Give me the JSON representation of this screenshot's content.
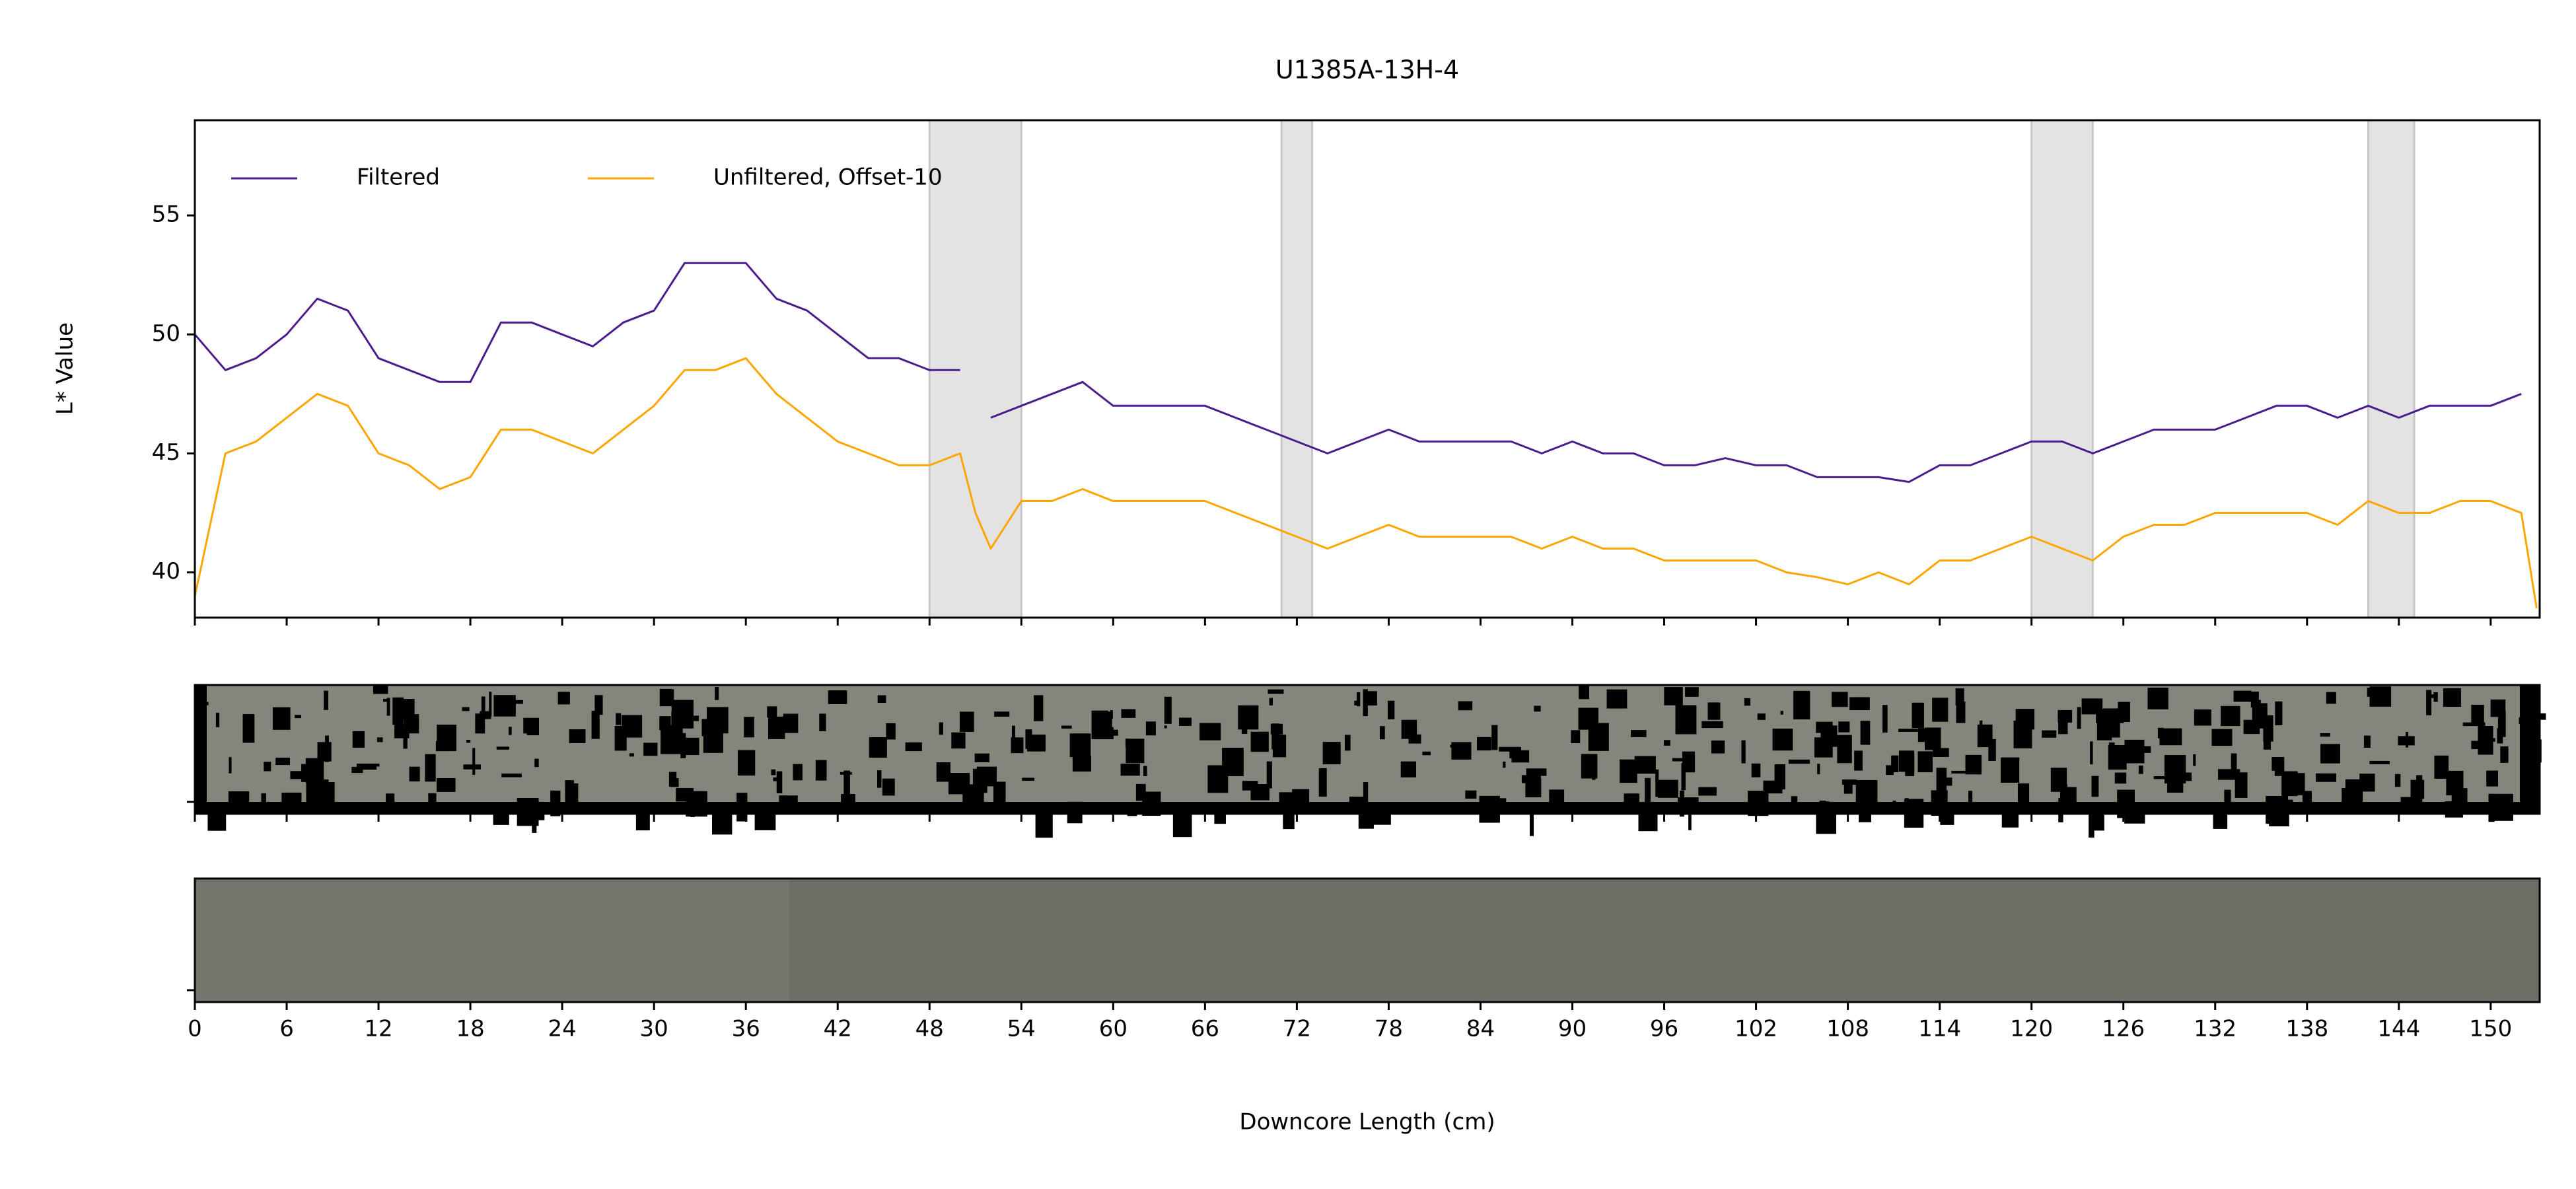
{
  "chart_data": {
    "type": "line",
    "title": "U1385A-13H-4",
    "xlabel": "Downcore Length (cm)",
    "ylabel": "L* Value",
    "x": [
      0,
      2,
      4,
      6,
      8,
      10,
      12,
      14,
      16,
      18,
      20,
      22,
      24,
      26,
      28,
      30,
      32,
      34,
      36,
      38,
      40,
      42,
      44,
      46,
      48,
      50,
      51,
      52,
      54,
      56,
      58,
      60,
      62,
      64,
      66,
      68,
      70,
      72,
      74,
      76,
      78,
      80,
      82,
      84,
      86,
      88,
      90,
      92,
      94,
      96,
      98,
      100,
      102,
      104,
      106,
      108,
      110,
      112,
      114,
      116,
      118,
      120,
      122,
      124,
      126,
      128,
      130,
      132,
      134,
      136,
      138,
      140,
      142,
      144,
      146,
      148,
      150,
      152,
      153
    ],
    "series": [
      {
        "name": "Filtered",
        "color": "#4b1d8c",
        "values": [
          50,
          48.5,
          49,
          50,
          51.5,
          51,
          49,
          48.5,
          48,
          48,
          50.5,
          50.5,
          50,
          49.5,
          50.5,
          51,
          53,
          53,
          53,
          51.5,
          51,
          50,
          49,
          49,
          48.5,
          48.5,
          null,
          46.5,
          47,
          47.5,
          48,
          47,
          47,
          47,
          47,
          46.5,
          46,
          45.5,
          45,
          45.5,
          46,
          45.5,
          45.5,
          45.5,
          45.5,
          45,
          45.5,
          45,
          45,
          44.5,
          44.5,
          44.8,
          44.5,
          44.5,
          44,
          44,
          44,
          43.8,
          44.5,
          44.5,
          45,
          45.5,
          45.5,
          45,
          45.5,
          46,
          46,
          46,
          46.5,
          47,
          47,
          46.5,
          47,
          46.5,
          47,
          47,
          47,
          47.5,
          null
        ]
      },
      {
        "name": "Unfiltered, Offset-10",
        "color": "#ffa500",
        "values": [
          39,
          45,
          45.5,
          46.5,
          47.5,
          47,
          45,
          44.5,
          43.5,
          44,
          46,
          46,
          45.5,
          45,
          46,
          47,
          48.5,
          48.5,
          49,
          47.5,
          46.5,
          45.5,
          45,
          44.5,
          44.5,
          45,
          42.5,
          41,
          43,
          43,
          43.5,
          43,
          43,
          43,
          43,
          42.5,
          42,
          41.5,
          41,
          41.5,
          42,
          41.5,
          41.5,
          41.5,
          41.5,
          41,
          41.5,
          41,
          41,
          40.5,
          40.5,
          40.5,
          40.5,
          40,
          39.8,
          39.5,
          40,
          39.5,
          40.5,
          40.5,
          41,
          41.5,
          41,
          40.5,
          41.5,
          42,
          42,
          42.5,
          42.5,
          42.5,
          42.5,
          42,
          43,
          42.5,
          42.5,
          43,
          43,
          42.5,
          38.5
        ]
      }
    ],
    "shaded_regions": [
      [
        48,
        54
      ],
      [
        71,
        73
      ],
      [
        120,
        124
      ],
      [
        142,
        145
      ]
    ],
    "shade_color": "#e3e3e3",
    "xlim": [
      0,
      153.2
    ],
    "xticks": [
      0,
      6,
      12,
      18,
      24,
      30,
      36,
      42,
      48,
      54,
      60,
      66,
      72,
      78,
      84,
      90,
      96,
      102,
      108,
      114,
      120,
      126,
      132,
      138,
      144,
      150
    ],
    "ylim": [
      38.1,
      59
    ],
    "yticks": [
      40,
      45,
      50,
      55
    ],
    "legend": "upper left",
    "grid": false
  }
}
